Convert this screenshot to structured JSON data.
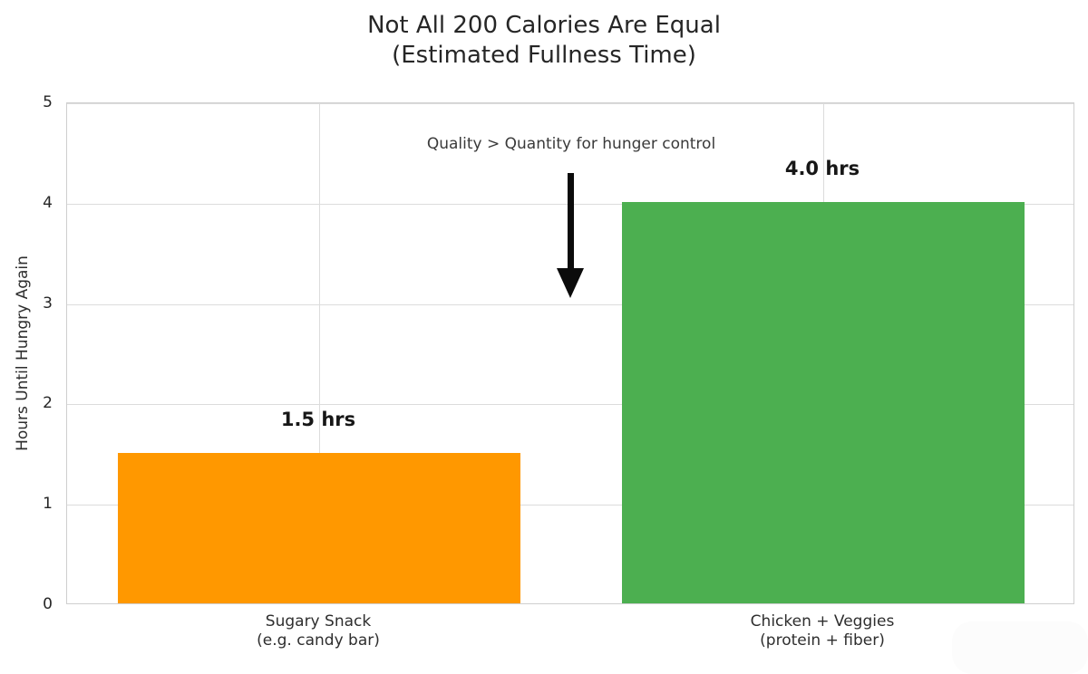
{
  "title": {
    "line1": "Not All 200 Calories Are Equal",
    "line2": "(Estimated Fullness Time)"
  },
  "chart_data": {
    "type": "bar",
    "categories": [
      {
        "line1": "Sugary Snack",
        "line2": "(e.g. candy bar)"
      },
      {
        "line1": "Chicken + Veggies",
        "line2": "(protein + fiber)"
      }
    ],
    "values": [
      1.5,
      4.0
    ],
    "bar_labels": [
      "1.5 hrs",
      "4.0 hrs"
    ],
    "bar_colors": [
      "#FF9800",
      "#4CAF50"
    ],
    "ylabel": "Hours Until Hungry Again",
    "ylim": [
      0,
      5
    ],
    "yticks": [
      0,
      1,
      2,
      3,
      4,
      5
    ],
    "grid": true,
    "legend_position": "none",
    "annotation": {
      "text": "Quality > Quantity for hunger control"
    },
    "colors": {
      "text": "#262626",
      "gridline": "#dcdcdc",
      "plot_border": "#cfcfcf",
      "arrow": "#0b0b0b",
      "background": "#ffffff"
    }
  }
}
